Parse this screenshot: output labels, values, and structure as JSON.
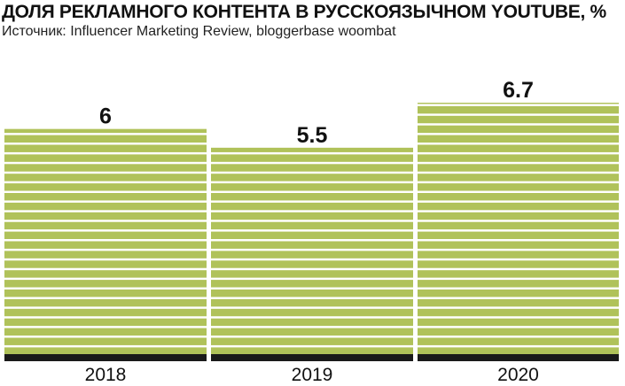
{
  "chart_data": {
    "type": "bar",
    "title": "ДОЛЯ РЕКЛАМНОГО КОНТЕНТА В РУССКОЯЗЫЧНОМ YOUTUBE, %",
    "subtitle": "Источник: Influencer Marketing Review, bloggerbase woombat",
    "categories": [
      "2018",
      "2019",
      "2020"
    ],
    "values": [
      6,
      5.5,
      6.7
    ],
    "value_labels": [
      "6",
      "5.5",
      "6.7"
    ],
    "xlabel": "",
    "ylabel": "",
    "ylim": [
      0,
      6.7
    ],
    "grid": false,
    "legend": "none",
    "colors": {
      "bar_fill": "#b0c25a",
      "bar_stripe": "#ffffff",
      "baseline": "#1a1a1a",
      "text": "#111111"
    }
  }
}
